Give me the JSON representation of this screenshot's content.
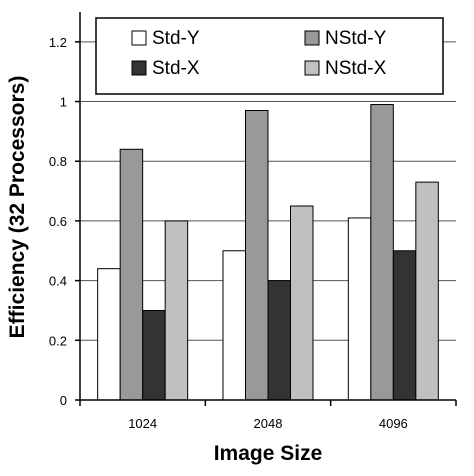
{
  "chart_data": {
    "type": "bar",
    "categories": [
      "1024",
      "2048",
      "4096"
    ],
    "series": [
      {
        "name": "Std-Y",
        "values": [
          0.44,
          0.5,
          0.61
        ],
        "color": "#ffffff"
      },
      {
        "name": "NStd-Y",
        "values": [
          0.84,
          0.97,
          0.99
        ],
        "color": "#999999"
      },
      {
        "name": "Std-X",
        "values": [
          0.3,
          0.4,
          0.5
        ],
        "color": "#333333"
      },
      {
        "name": "NStd-X",
        "values": [
          0.6,
          0.65,
          0.73
        ],
        "color": "#c0c0c0"
      }
    ],
    "xlabel": "Image Size",
    "ylabel": "Efficiency (32 Processors)",
    "ylim": [
      0,
      1.3
    ],
    "yticks": [
      0,
      0.2,
      0.4,
      0.6,
      0.8,
      1,
      1.2
    ],
    "ytick_labels": [
      "0",
      "0.2",
      "0.4",
      "0.6",
      "0.8",
      "1",
      "1.2"
    ],
    "grid": "horizontal",
    "legend_position": "top",
    "legend_order": [
      "Std-Y",
      "NStd-Y",
      "Std-X",
      "NStd-X"
    ]
  }
}
